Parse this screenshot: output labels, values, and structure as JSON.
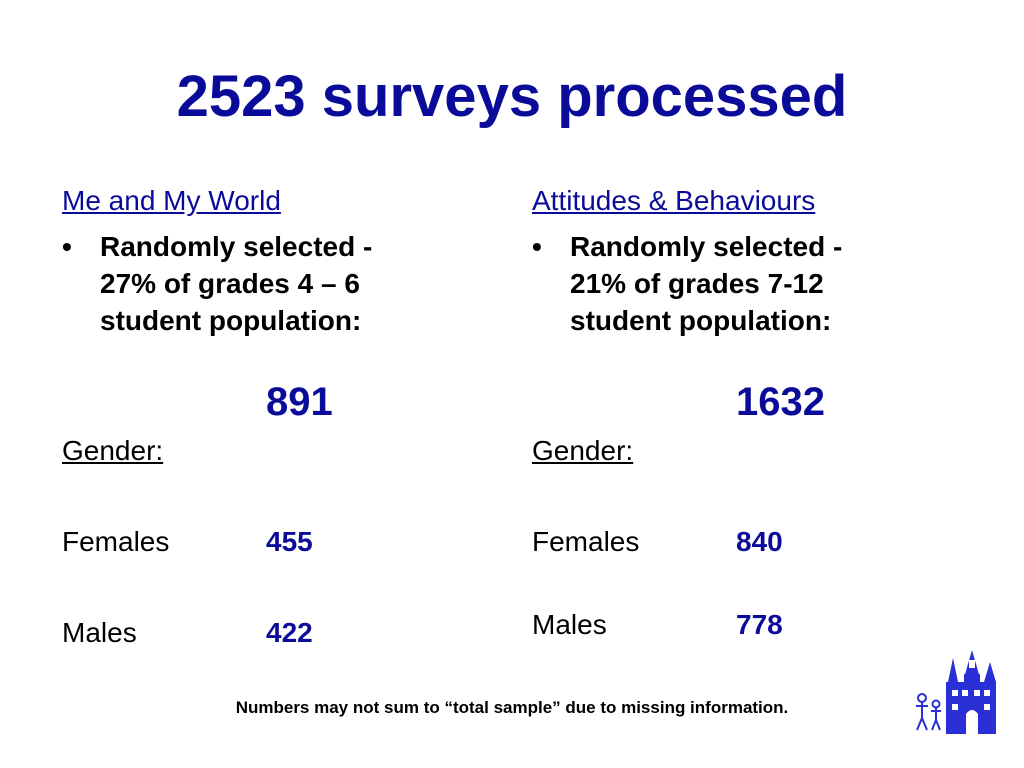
{
  "title": "2523 surveys processed",
  "left": {
    "heading": "Me and My World",
    "bullet_lines": [
      "Randomly selected  -",
      "27% of grades 4 – 6",
      "student population:"
    ],
    "total": "891",
    "gender_label": "Gender:",
    "females_label": "Females",
    "females_value": "455",
    "males_label": "Males",
    "males_value": "422"
  },
  "right": {
    "heading": "Attitudes & Behaviours",
    "bullet_lines": [
      "Randomly selected  -",
      "21% of grades 7-12",
      "student population:"
    ],
    "total": "1632",
    "gender_label": "Gender:",
    "females_label": "Females",
    "females_value": "840",
    "males_label": "Males",
    "males_value": "778"
  },
  "footnote": "Numbers may not sum to “total sample” due to missing information.",
  "colors": {
    "accent": "#0b0b99",
    "text": "#000000",
    "logo": "#2a2fd6"
  },
  "logo_icon": "castle-with-figures-icon"
}
